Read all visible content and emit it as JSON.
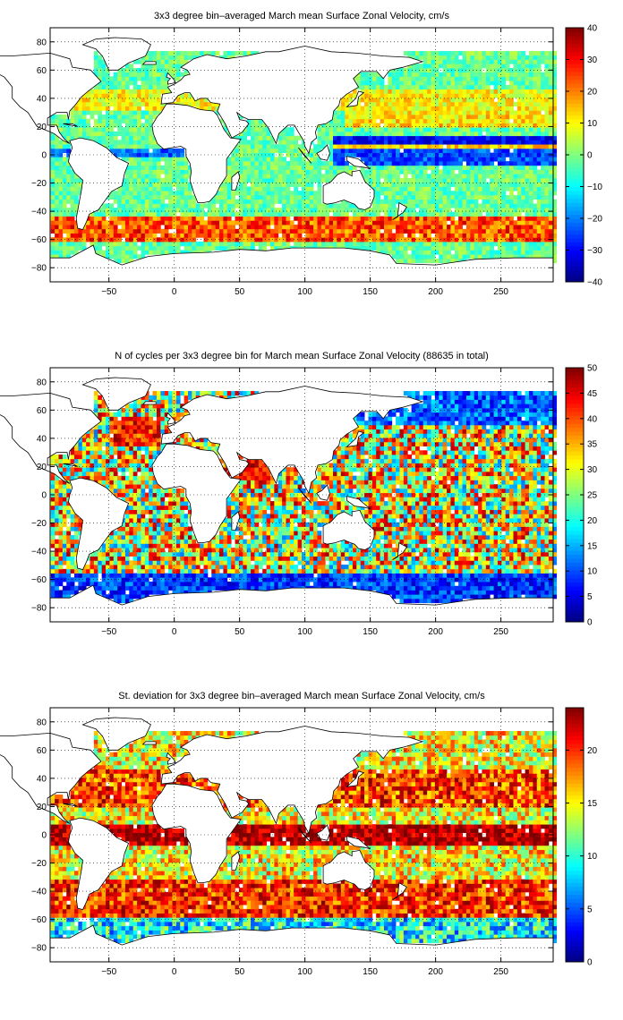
{
  "colormap": "jet",
  "colors": {
    "background": "#ffffff",
    "land": "#ffffff",
    "axis": "#000000",
    "grid": "#000000"
  },
  "chart_data": [
    {
      "type": "heatmap",
      "title": "3x3 degree bin–averaged March mean Surface Zonal Velocity, cm/s",
      "xlabel": "",
      "ylabel": "",
      "xlim": [
        -95,
        290
      ],
      "ylim": [
        -90,
        90
      ],
      "xticks": [
        -50,
        0,
        50,
        100,
        150,
        200,
        250
      ],
      "yticks": [
        -80,
        -60,
        -40,
        -20,
        0,
        20,
        40,
        60,
        80
      ],
      "grid": true,
      "bin_size_deg": 3,
      "colorbar": {
        "min": -40,
        "max": 40,
        "ticks": [
          -40,
          -30,
          -20,
          -10,
          0,
          10,
          20,
          30,
          40
        ],
        "location": "right"
      },
      "pattern": "zonal velocity"
    },
    {
      "type": "heatmap",
      "title": "N of cycles per 3x3 degree bin for March mean Surface Zonal Velocity (88635 in total)",
      "xlabel": "",
      "ylabel": "",
      "xlim": [
        -95,
        290
      ],
      "ylim": [
        -90,
        90
      ],
      "xticks": [
        -50,
        0,
        50,
        100,
        150,
        200,
        250
      ],
      "yticks": [
        -80,
        -60,
        -40,
        -20,
        0,
        20,
        40,
        60,
        80
      ],
      "grid": true,
      "bin_size_deg": 3,
      "total_count": 88635,
      "colorbar": {
        "min": 0,
        "max": 50,
        "ticks": [
          0,
          5,
          10,
          15,
          20,
          25,
          30,
          35,
          40,
          45,
          50
        ],
        "location": "right"
      },
      "pattern": "cycle count"
    },
    {
      "type": "heatmap",
      "title": "St. deviation for 3x3 degree bin–averaged March mean Surface Zonal Velocity, cm/s",
      "xlabel": "",
      "ylabel": "",
      "xlim": [
        -95,
        290
      ],
      "ylim": [
        -90,
        90
      ],
      "xticks": [
        -50,
        0,
        50,
        100,
        150,
        200,
        250
      ],
      "yticks": [
        -80,
        -60,
        -40,
        -20,
        0,
        20,
        40,
        60,
        80
      ],
      "grid": true,
      "bin_size_deg": 3,
      "colorbar": {
        "min": 0,
        "max": 24,
        "ticks": [
          0,
          5,
          10,
          15,
          20
        ],
        "location": "right"
      },
      "pattern": "standard deviation"
    }
  ]
}
